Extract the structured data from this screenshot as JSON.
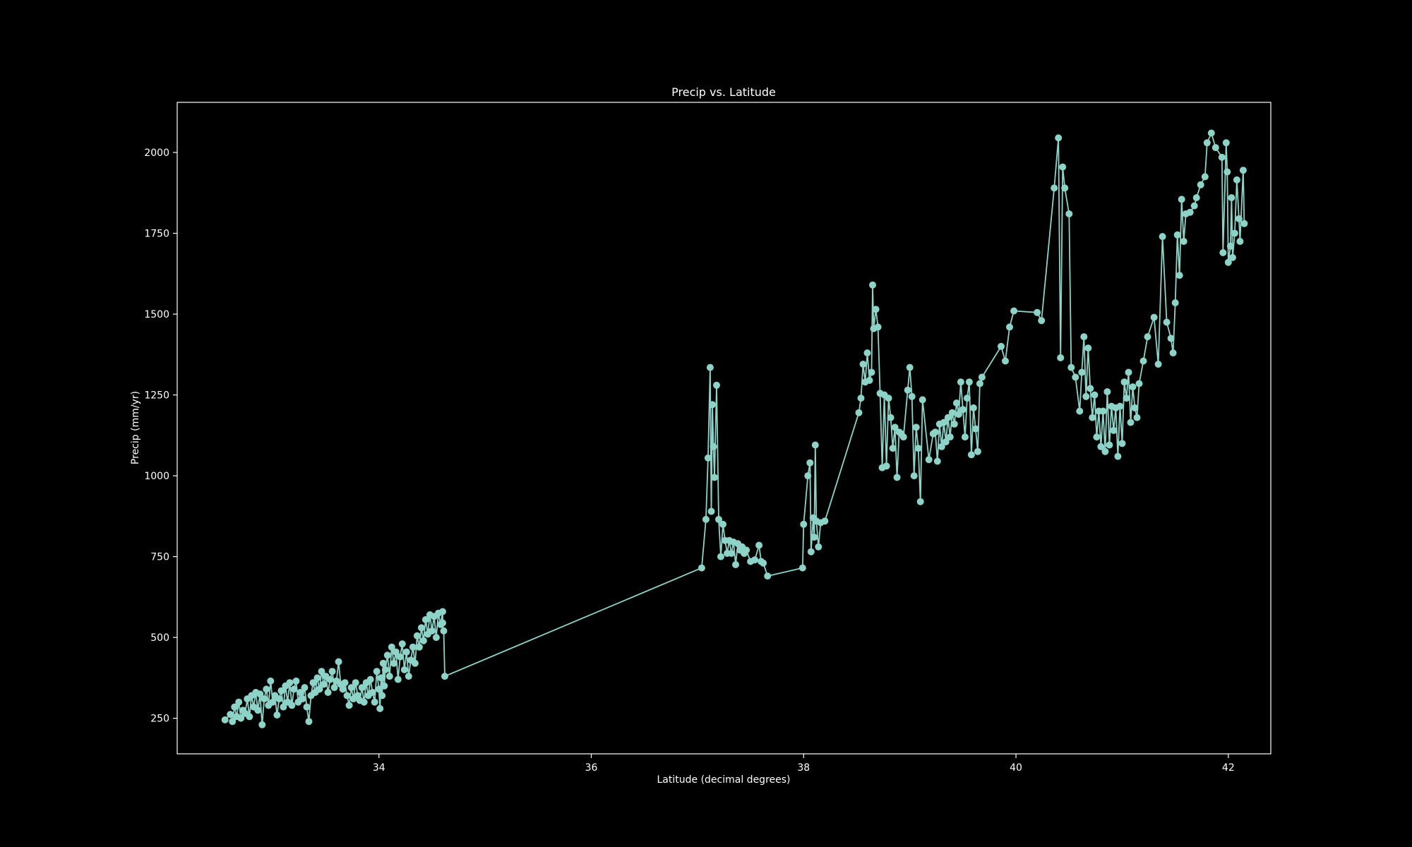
{
  "chart_data": {
    "type": "line",
    "title": "Precip vs. Latitude",
    "xlabel": "Latitude (decimal degrees)",
    "ylabel": "Precip (mm/yr)",
    "xlim": [
      32.1,
      42.4
    ],
    "ylim": [
      140,
      2155
    ],
    "xticks": [
      34,
      36,
      38,
      40,
      42
    ],
    "yticks": [
      250,
      500,
      750,
      1000,
      1250,
      1500,
      1750,
      2000
    ],
    "grid": false,
    "legend": "none",
    "colors": {
      "background": "#000000",
      "axes": "#ffffff",
      "series": "#8dd3c7"
    },
    "series": [
      {
        "marker": "circle",
        "points": [
          [
            32.55,
            245
          ],
          [
            32.6,
            262
          ],
          [
            32.62,
            240
          ],
          [
            32.64,
            285
          ],
          [
            32.66,
            255
          ],
          [
            32.68,
            300
          ],
          [
            32.7,
            250
          ],
          [
            32.72,
            275
          ],
          [
            32.74,
            265
          ],
          [
            32.76,
            310
          ],
          [
            32.78,
            255
          ],
          [
            32.8,
            320
          ],
          [
            32.82,
            285
          ],
          [
            32.84,
            330
          ],
          [
            32.86,
            275
          ],
          [
            32.88,
            325
          ],
          [
            32.9,
            230
          ],
          [
            32.92,
            310
          ],
          [
            32.94,
            340
          ],
          [
            32.96,
            290
          ],
          [
            32.98,
            365
          ],
          [
            33.0,
            300
          ],
          [
            33.02,
            320
          ],
          [
            33.04,
            260
          ],
          [
            33.06,
            310
          ],
          [
            33.08,
            335
          ],
          [
            33.1,
            285
          ],
          [
            33.12,
            350
          ],
          [
            33.14,
            300
          ],
          [
            33.16,
            360
          ],
          [
            33.18,
            290
          ],
          [
            33.2,
            340
          ],
          [
            33.22,
            365
          ],
          [
            33.24,
            300
          ],
          [
            33.26,
            330
          ],
          [
            33.28,
            310
          ],
          [
            33.3,
            345
          ],
          [
            33.32,
            285
          ],
          [
            33.34,
            240
          ],
          [
            33.36,
            320
          ],
          [
            33.38,
            360
          ],
          [
            33.4,
            330
          ],
          [
            33.42,
            375
          ],
          [
            33.44,
            340
          ],
          [
            33.46,
            395
          ],
          [
            33.48,
            355
          ],
          [
            33.5,
            380
          ],
          [
            33.52,
            330
          ],
          [
            33.54,
            370
          ],
          [
            33.56,
            395
          ],
          [
            33.58,
            345
          ],
          [
            33.6,
            365
          ],
          [
            33.62,
            425
          ],
          [
            33.64,
            355
          ],
          [
            33.66,
            340
          ],
          [
            33.68,
            360
          ],
          [
            33.7,
            320
          ],
          [
            33.72,
            290
          ],
          [
            33.74,
            345
          ],
          [
            33.76,
            310
          ],
          [
            33.78,
            360
          ],
          [
            33.8,
            320
          ],
          [
            33.82,
            305
          ],
          [
            33.84,
            345
          ],
          [
            33.86,
            300
          ],
          [
            33.88,
            360
          ],
          [
            33.9,
            320
          ],
          [
            33.92,
            370
          ],
          [
            33.94,
            330
          ],
          [
            33.96,
            300
          ],
          [
            33.98,
            395
          ],
          [
            34.0,
            340
          ],
          [
            34.01,
            280
          ],
          [
            34.02,
            375
          ],
          [
            34.03,
            320
          ],
          [
            34.04,
            420
          ],
          [
            34.05,
            350
          ],
          [
            34.06,
            400
          ],
          [
            34.08,
            445
          ],
          [
            34.1,
            380
          ],
          [
            34.12,
            470
          ],
          [
            34.14,
            420
          ],
          [
            34.16,
            455
          ],
          [
            34.18,
            370
          ],
          [
            34.2,
            440
          ],
          [
            34.22,
            480
          ],
          [
            34.24,
            400
          ],
          [
            34.26,
            455
          ],
          [
            34.28,
            380
          ],
          [
            34.3,
            430
          ],
          [
            34.32,
            470
          ],
          [
            34.34,
            420
          ],
          [
            34.36,
            505
          ],
          [
            34.38,
            470
          ],
          [
            34.4,
            530
          ],
          [
            34.42,
            490
          ],
          [
            34.44,
            555
          ],
          [
            34.46,
            510
          ],
          [
            34.48,
            570
          ],
          [
            34.5,
            520
          ],
          [
            34.52,
            565
          ],
          [
            34.54,
            500
          ],
          [
            34.56,
            575
          ],
          [
            34.58,
            540
          ],
          [
            34.6,
            580
          ],
          [
            34.6,
            545
          ],
          [
            34.61,
            520
          ],
          [
            34.62,
            380
          ],
          [
            37.04,
            715
          ],
          [
            37.08,
            865
          ],
          [
            37.1,
            1055
          ],
          [
            37.12,
            1335
          ],
          [
            37.13,
            890
          ],
          [
            37.14,
            1220
          ],
          [
            37.15,
            1090
          ],
          [
            37.16,
            995
          ],
          [
            37.18,
            1280
          ],
          [
            37.2,
            865
          ],
          [
            37.22,
            750
          ],
          [
            37.24,
            850
          ],
          [
            37.26,
            800
          ],
          [
            37.28,
            760
          ],
          [
            37.3,
            800
          ],
          [
            37.32,
            760
          ],
          [
            37.34,
            795
          ],
          [
            37.36,
            725
          ],
          [
            37.38,
            790
          ],
          [
            37.4,
            770
          ],
          [
            37.42,
            780
          ],
          [
            37.44,
            760
          ],
          [
            37.46,
            770
          ],
          [
            37.5,
            735
          ],
          [
            37.54,
            740
          ],
          [
            37.58,
            785
          ],
          [
            37.6,
            735
          ],
          [
            37.62,
            730
          ],
          [
            37.66,
            690
          ],
          [
            37.99,
            715
          ],
          [
            38.0,
            850
          ],
          [
            38.04,
            1000
          ],
          [
            38.06,
            1040
          ],
          [
            38.07,
            765
          ],
          [
            38.09,
            870
          ],
          [
            38.1,
            810
          ],
          [
            38.11,
            1095
          ],
          [
            38.12,
            860
          ],
          [
            38.14,
            780
          ],
          [
            38.16,
            855
          ],
          [
            38.2,
            860
          ],
          [
            38.52,
            1195
          ],
          [
            38.54,
            1240
          ],
          [
            38.56,
            1345
          ],
          [
            38.58,
            1290
          ],
          [
            38.6,
            1380
          ],
          [
            38.62,
            1295
          ],
          [
            38.64,
            1320
          ],
          [
            38.65,
            1590
          ],
          [
            38.66,
            1455
          ],
          [
            38.68,
            1515
          ],
          [
            38.7,
            1460
          ],
          [
            38.72,
            1255
          ],
          [
            38.74,
            1025
          ],
          [
            38.76,
            1250
          ],
          [
            38.78,
            1030
          ],
          [
            38.8,
            1240
          ],
          [
            38.82,
            1180
          ],
          [
            38.84,
            1085
          ],
          [
            38.86,
            1150
          ],
          [
            38.88,
            995
          ],
          [
            38.9,
            1135
          ],
          [
            38.92,
            1130
          ],
          [
            38.94,
            1120
          ],
          [
            38.98,
            1265
          ],
          [
            39.0,
            1335
          ],
          [
            39.02,
            1245
          ],
          [
            39.04,
            1000
          ],
          [
            39.06,
            1150
          ],
          [
            39.08,
            1085
          ],
          [
            39.1,
            920
          ],
          [
            39.12,
            1235
          ],
          [
            39.18,
            1050
          ],
          [
            39.22,
            1130
          ],
          [
            39.24,
            1135
          ],
          [
            39.26,
            1045
          ],
          [
            39.28,
            1160
          ],
          [
            39.3,
            1090
          ],
          [
            39.32,
            1165
          ],
          [
            39.34,
            1105
          ],
          [
            39.36,
            1180
          ],
          [
            39.38,
            1120
          ],
          [
            39.4,
            1195
          ],
          [
            39.42,
            1160
          ],
          [
            39.44,
            1225
          ],
          [
            39.46,
            1190
          ],
          [
            39.48,
            1290
          ],
          [
            39.5,
            1205
          ],
          [
            39.52,
            1120
          ],
          [
            39.54,
            1240
          ],
          [
            39.56,
            1290
          ],
          [
            39.58,
            1065
          ],
          [
            39.6,
            1210
          ],
          [
            39.62,
            1145
          ],
          [
            39.64,
            1075
          ],
          [
            39.66,
            1285
          ],
          [
            39.68,
            1305
          ],
          [
            39.86,
            1400
          ],
          [
            39.9,
            1355
          ],
          [
            39.94,
            1460
          ],
          [
            39.98,
            1510
          ],
          [
            40.2,
            1505
          ],
          [
            40.24,
            1480
          ],
          [
            40.36,
            1890
          ],
          [
            40.4,
            2045
          ],
          [
            40.42,
            1365
          ],
          [
            40.44,
            1955
          ],
          [
            40.46,
            1890
          ],
          [
            40.5,
            1810
          ],
          [
            40.52,
            1335
          ],
          [
            40.56,
            1305
          ],
          [
            40.6,
            1200
          ],
          [
            40.62,
            1320
          ],
          [
            40.64,
            1430
          ],
          [
            40.66,
            1245
          ],
          [
            40.68,
            1395
          ],
          [
            40.7,
            1270
          ],
          [
            40.72,
            1180
          ],
          [
            40.74,
            1250
          ],
          [
            40.76,
            1120
          ],
          [
            40.78,
            1200
          ],
          [
            40.8,
            1090
          ],
          [
            40.82,
            1200
          ],
          [
            40.84,
            1075
          ],
          [
            40.86,
            1260
          ],
          [
            40.88,
            1095
          ],
          [
            40.9,
            1215
          ],
          [
            40.92,
            1140
          ],
          [
            40.94,
            1210
          ],
          [
            40.96,
            1060
          ],
          [
            40.98,
            1215
          ],
          [
            41.0,
            1100
          ],
          [
            41.02,
            1290
          ],
          [
            41.04,
            1240
          ],
          [
            41.06,
            1320
          ],
          [
            41.08,
            1165
          ],
          [
            41.1,
            1275
          ],
          [
            41.12,
            1210
          ],
          [
            41.14,
            1180
          ],
          [
            41.16,
            1285
          ],
          [
            41.2,
            1355
          ],
          [
            41.24,
            1430
          ],
          [
            41.3,
            1490
          ],
          [
            41.34,
            1345
          ],
          [
            41.38,
            1740
          ],
          [
            41.42,
            1475
          ],
          [
            41.46,
            1425
          ],
          [
            41.48,
            1380
          ],
          [
            41.5,
            1535
          ],
          [
            41.52,
            1745
          ],
          [
            41.54,
            1620
          ],
          [
            41.56,
            1855
          ],
          [
            41.58,
            1725
          ],
          [
            41.6,
            1810
          ],
          [
            41.64,
            1815
          ],
          [
            41.68,
            1835
          ],
          [
            41.7,
            1860
          ],
          [
            41.74,
            1900
          ],
          [
            41.78,
            1925
          ],
          [
            41.8,
            2030
          ],
          [
            41.84,
            2060
          ],
          [
            41.88,
            2015
          ],
          [
            41.94,
            1985
          ],
          [
            41.95,
            1690
          ],
          [
            41.98,
            2030
          ],
          [
            41.99,
            1940
          ],
          [
            42.0,
            1660
          ],
          [
            42.02,
            1710
          ],
          [
            42.03,
            1860
          ],
          [
            42.04,
            1675
          ],
          [
            42.06,
            1750
          ],
          [
            42.08,
            1915
          ],
          [
            42.1,
            1795
          ],
          [
            42.11,
            1725
          ],
          [
            42.14,
            1945
          ],
          [
            42.15,
            1780
          ]
        ]
      }
    ]
  }
}
